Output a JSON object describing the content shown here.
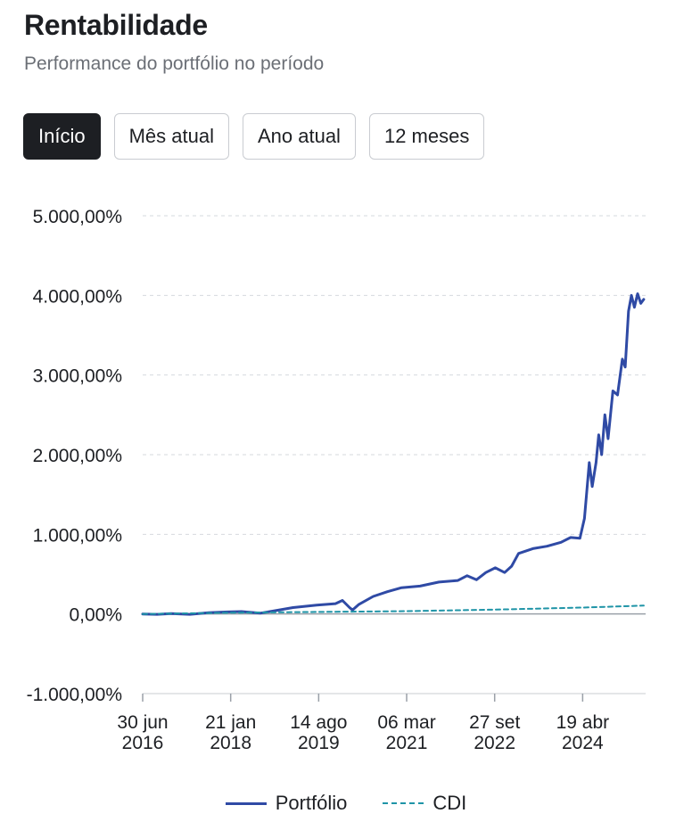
{
  "header": {
    "title": "Rentabilidade",
    "subtitle": "Performance do portfólio no período"
  },
  "tabs": [
    {
      "label": "Início",
      "active": true
    },
    {
      "label": "Mês atual",
      "active": false
    },
    {
      "label": "Ano atual",
      "active": false
    },
    {
      "label": "12 meses",
      "active": false
    }
  ],
  "colors": {
    "portfolio": "#2f4aa5",
    "cdi": "#1f94a7",
    "zero_line": "#9aa0a8",
    "grid": "#d6d9de"
  },
  "chart_data": {
    "type": "line",
    "ylim": [
      -1000,
      5000
    ],
    "xlim": [
      "2016-06-30",
      "2025-06-01"
    ],
    "ytick_values": [
      5000,
      4000,
      3000,
      2000,
      1000,
      0,
      -1000
    ],
    "ytick_labels": [
      "5.000,00%",
      "4.000,00%",
      "3.000,00%",
      "2.000,00%",
      "1.000,00%",
      "0,00%",
      "-1.000,00%"
    ],
    "xticks": [
      {
        "date": "2016-06-30",
        "line1": "30 jun",
        "line2": "2016"
      },
      {
        "date": "2018-01-21",
        "line1": "21 jan",
        "line2": "2018"
      },
      {
        "date": "2019-08-14",
        "line1": "14 ago",
        "line2": "2019"
      },
      {
        "date": "2021-03-06",
        "line1": "06 mar",
        "line2": "2021"
      },
      {
        "date": "2022-09-27",
        "line1": "27 set",
        "line2": "2022"
      },
      {
        "date": "2024-04-19",
        "line1": "19 abr",
        "line2": "2024"
      }
    ],
    "grid": "horizontal dashed",
    "legend_position": "bottom-center",
    "series": [
      {
        "name": "Portfólio",
        "style": "solid",
        "points": [
          [
            "2016-06-30",
            0
          ],
          [
            "2016-10-01",
            -5
          ],
          [
            "2017-01-01",
            5
          ],
          [
            "2017-05-01",
            -5
          ],
          [
            "2017-09-01",
            15
          ],
          [
            "2018-01-01",
            25
          ],
          [
            "2018-04-01",
            30
          ],
          [
            "2018-08-01",
            10
          ],
          [
            "2018-11-01",
            40
          ],
          [
            "2019-03-01",
            80
          ],
          [
            "2019-08-01",
            110
          ],
          [
            "2019-12-01",
            130
          ],
          [
            "2020-01-15",
            170
          ],
          [
            "2020-03-01",
            80
          ],
          [
            "2020-03-20",
            50
          ],
          [
            "2020-05-01",
            120
          ],
          [
            "2020-08-01",
            220
          ],
          [
            "2020-11-01",
            280
          ],
          [
            "2021-02-01",
            330
          ],
          [
            "2021-06-01",
            350
          ],
          [
            "2021-10-01",
            400
          ],
          [
            "2022-02-01",
            420
          ],
          [
            "2022-04-01",
            480
          ],
          [
            "2022-06-01",
            430
          ],
          [
            "2022-08-01",
            520
          ],
          [
            "2022-10-01",
            580
          ],
          [
            "2022-12-01",
            520
          ],
          [
            "2023-01-15",
            600
          ],
          [
            "2023-03-01",
            760
          ],
          [
            "2023-06-01",
            820
          ],
          [
            "2023-09-01",
            850
          ],
          [
            "2023-12-01",
            900
          ],
          [
            "2024-02-01",
            960
          ],
          [
            "2024-04-01",
            950
          ],
          [
            "2024-05-01",
            1200
          ],
          [
            "2024-06-01",
            1900
          ],
          [
            "2024-06-20",
            1600
          ],
          [
            "2024-07-15",
            1900
          ],
          [
            "2024-08-01",
            2250
          ],
          [
            "2024-08-20",
            2000
          ],
          [
            "2024-09-10",
            2500
          ],
          [
            "2024-10-01",
            2200
          ],
          [
            "2024-11-01",
            2800
          ],
          [
            "2024-12-01",
            2750
          ],
          [
            "2025-01-01",
            3200
          ],
          [
            "2025-01-20",
            3100
          ],
          [
            "2025-02-10",
            3800
          ],
          [
            "2025-03-01",
            4000
          ],
          [
            "2025-03-20",
            3850
          ],
          [
            "2025-04-10",
            4020
          ],
          [
            "2025-05-01",
            3900
          ],
          [
            "2025-05-20",
            3950
          ]
        ]
      },
      {
        "name": "CDI",
        "style": "dashed",
        "points": [
          [
            "2016-06-30",
            0
          ],
          [
            "2018-01-21",
            15
          ],
          [
            "2019-08-14",
            25
          ],
          [
            "2021-03-06",
            35
          ],
          [
            "2022-09-27",
            55
          ],
          [
            "2024-04-19",
            80
          ],
          [
            "2025-05-20",
            105
          ]
        ]
      }
    ]
  }
}
